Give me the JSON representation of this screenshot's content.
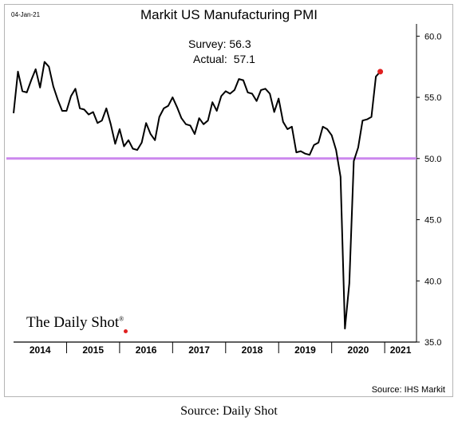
{
  "header": {
    "date": "04-Jan-21",
    "title": "Markit US Manufacturing PMI"
  },
  "annotation": {
    "survey_label": "Survey:",
    "survey_value": "56.3",
    "actual_label": "Actual:",
    "actual_value": "57.1"
  },
  "brand": "The Daily Shot",
  "brand_mark": "®",
  "source_note": "Source: IHS Markit",
  "caption": "Source: Daily Shot",
  "colors": {
    "line": "#000000",
    "reference_line": "#cc88ee",
    "latest_point": "#e02020"
  },
  "chart_data": {
    "type": "line",
    "title": "Markit US Manufacturing PMI",
    "x_labels": [
      "2014",
      "2015",
      "2016",
      "2017",
      "2018",
      "2019",
      "2020",
      "2021"
    ],
    "x_range": [
      2014.0,
      2021.6
    ],
    "ylim": [
      35.0,
      61.0
    ],
    "y_ticks": [
      "60.0",
      "55.0",
      "50.0",
      "45.0",
      "40.0",
      "35.0"
    ],
    "y_axis_side": "right",
    "reference_line": 50.0,
    "grid": false,
    "legend": "none",
    "series": [
      {
        "x": [
          "2014-01",
          "2014-02",
          "2014-03",
          "2014-04",
          "2014-05",
          "2014-06",
          "2014-07",
          "2014-08",
          "2014-09",
          "2014-10",
          "2014-11",
          "2014-12",
          "2015-01",
          "2015-02",
          "2015-03",
          "2015-04",
          "2015-05",
          "2015-06",
          "2015-07",
          "2015-08",
          "2015-09",
          "2015-10",
          "2015-11",
          "2015-12",
          "2016-01",
          "2016-02",
          "2016-03",
          "2016-04",
          "2016-05",
          "2016-06",
          "2016-07",
          "2016-08",
          "2016-09",
          "2016-10",
          "2016-11",
          "2016-12",
          "2017-01",
          "2017-02",
          "2017-03",
          "2017-04",
          "2017-05",
          "2017-06",
          "2017-07",
          "2017-08",
          "2017-09",
          "2017-10",
          "2017-11",
          "2017-12",
          "2018-01",
          "2018-02",
          "2018-03",
          "2018-04",
          "2018-05",
          "2018-06",
          "2018-07",
          "2018-08",
          "2018-09",
          "2018-10",
          "2018-11",
          "2018-12",
          "2019-01",
          "2019-02",
          "2019-03",
          "2019-04",
          "2019-05",
          "2019-06",
          "2019-07",
          "2019-08",
          "2019-09",
          "2019-10",
          "2019-11",
          "2019-12",
          "2020-01",
          "2020-02",
          "2020-03",
          "2020-04",
          "2020-05",
          "2020-06",
          "2020-07",
          "2020-08",
          "2020-09",
          "2020-10",
          "2020-11",
          "2020-12"
        ],
        "values": [
          53.7,
          57.1,
          55.5,
          55.4,
          56.4,
          57.3,
          55.8,
          57.9,
          57.5,
          55.9,
          54.8,
          53.9,
          53.9,
          55.1,
          55.7,
          54.1,
          54.0,
          53.6,
          53.8,
          52.9,
          53.1,
          54.1,
          52.8,
          51.2,
          52.4,
          51.0,
          51.5,
          50.8,
          50.7,
          51.3,
          52.9,
          52.0,
          51.5,
          53.4,
          54.1,
          54.3,
          55.0,
          54.2,
          53.3,
          52.8,
          52.7,
          52.0,
          53.3,
          52.8,
          53.1,
          54.6,
          53.9,
          55.1,
          55.5,
          55.3,
          55.6,
          56.5,
          56.4,
          55.4,
          55.3,
          54.7,
          55.6,
          55.7,
          55.3,
          53.8,
          54.9,
          53.0,
          52.4,
          52.6,
          50.5,
          50.6,
          50.4,
          50.3,
          51.1,
          51.3,
          52.6,
          52.4,
          51.9,
          50.7,
          48.5,
          36.1,
          39.8,
          49.8,
          50.9,
          53.1,
          53.2,
          53.4,
          56.7,
          57.1
        ]
      }
    ]
  }
}
